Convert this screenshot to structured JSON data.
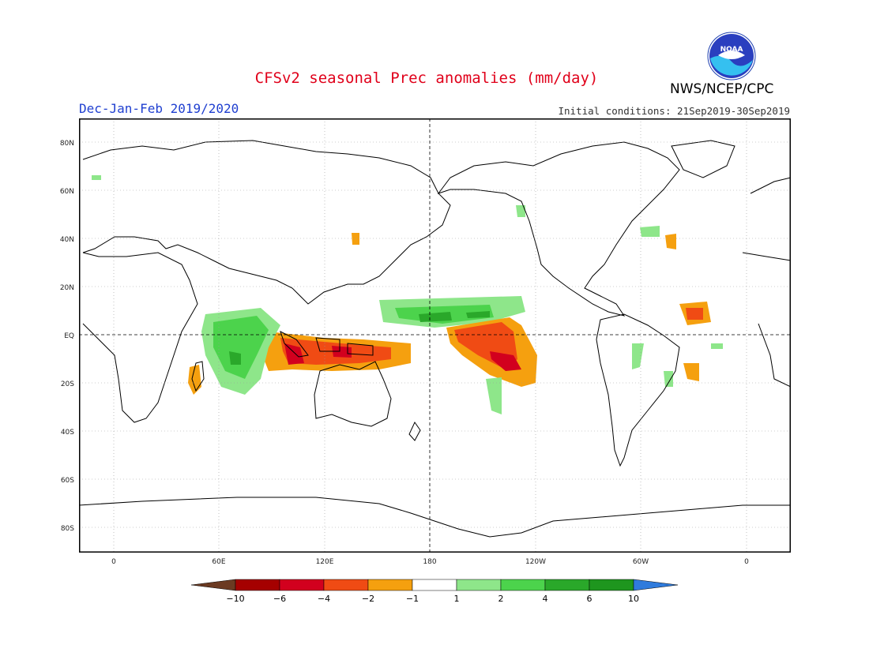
{
  "header": {
    "title": "CFSv2 seasonal Prec anomalies (mm/day)",
    "agency": "NWS/NCEP/CPC",
    "season": "Dec-Jan-Feb 2019/2020",
    "initial_conditions": "Initial conditions: 21Sep2019-30Sep2019",
    "logo_text": "NOAA"
  },
  "map": {
    "lat_ticks": [
      "80N",
      "60N",
      "40N",
      "20N",
      "EQ",
      "20S",
      "40S",
      "60S",
      "80S"
    ],
    "lon_ticks": [
      "0",
      "60E",
      "120E",
      "180",
      "120W",
      "60W",
      "0"
    ]
  },
  "colorbar": {
    "labels": [
      "-10",
      "-6",
      "-4",
      "-2",
      "-1",
      "1",
      "2",
      "4",
      "6",
      "10"
    ],
    "colors": [
      "#6b3a22",
      "#a50000",
      "#d2001e",
      "#f04b14",
      "#f5a00f",
      "#ffffff",
      "#8ee68a",
      "#4cd34c",
      "#2aa82a",
      "#1e961e",
      "#2f7bdc"
    ]
  },
  "legend_palette": {
    "brown": "#6b3a22",
    "dark_red": "#a50000",
    "red": "#d2001e",
    "orange_red": "#f04b14",
    "orange": "#f5a00f",
    "light_green": "#8ee68a",
    "green": "#4cd34c",
    "dark_green": "#2aa82a",
    "blue": "#2f7bdc"
  }
}
